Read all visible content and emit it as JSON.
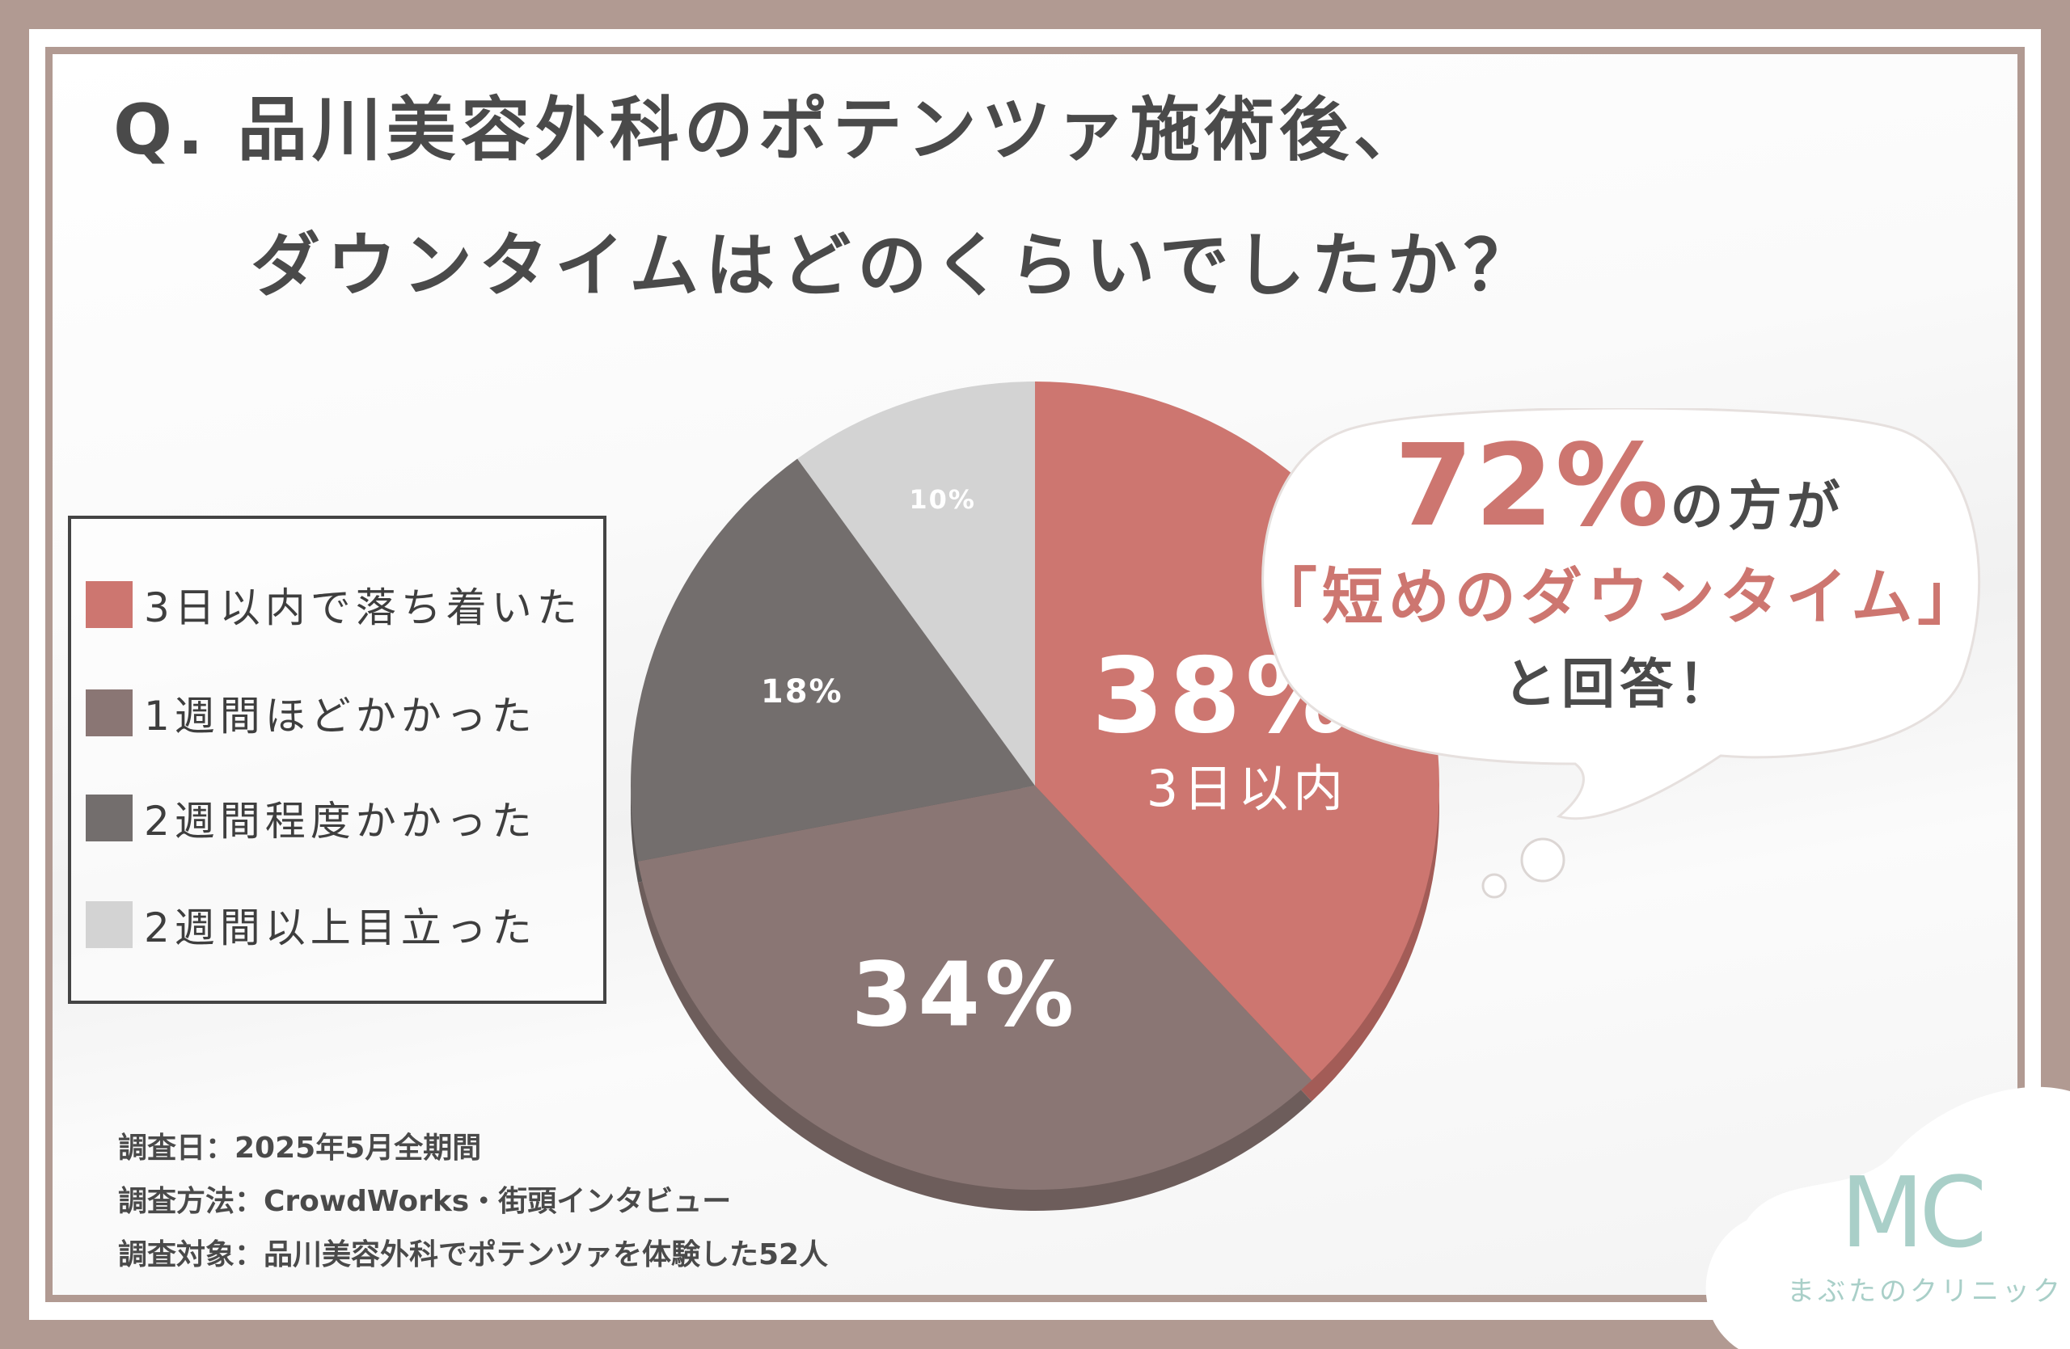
{
  "title": {
    "line1": "Q. 品川美容外科のポテンツァ施術後、",
    "line2": "ダウンタイムはどのくらいでしたか？"
  },
  "colors": {
    "frame": "#b19a92",
    "slice_3days": "#cd7670",
    "slice_1week": "#8a7674",
    "slice_2weeks": "#736e6d",
    "slice_over2weeks": "#d3d3d3",
    "accent": "#cd7670"
  },
  "chart_data": {
    "type": "pie",
    "categories": [
      "3日以内で落ち着いた",
      "1週間ほどかかった",
      "2週間程度かかった",
      "2週間以上目立った"
    ],
    "values": [
      38,
      34,
      18,
      10
    ],
    "labels": [
      "38%",
      "34%",
      "18%",
      "10%"
    ],
    "sublabel_first": "3日以内",
    "legend_position": "left"
  },
  "legend": {
    "items": [
      {
        "label": "3日以内で落ち着いた"
      },
      {
        "label": "1週間ほどかかった"
      },
      {
        "label": "2週間程度かかった"
      },
      {
        "label": "2週間以上目立った"
      }
    ]
  },
  "callout": {
    "percent": "72%",
    "suffix": "の方が",
    "quote": "「短めのダウンタイム」",
    "ending": "と回答！"
  },
  "survey": {
    "date": "調査日：2025年5月全期間",
    "method": "調査方法：CrowdWorks・街頭インタビュー",
    "target": "調査対象：品川美容外科でポテンツァを体験した52人"
  },
  "logo": {
    "mark": "MC",
    "name": "まぶたのクリニック"
  }
}
